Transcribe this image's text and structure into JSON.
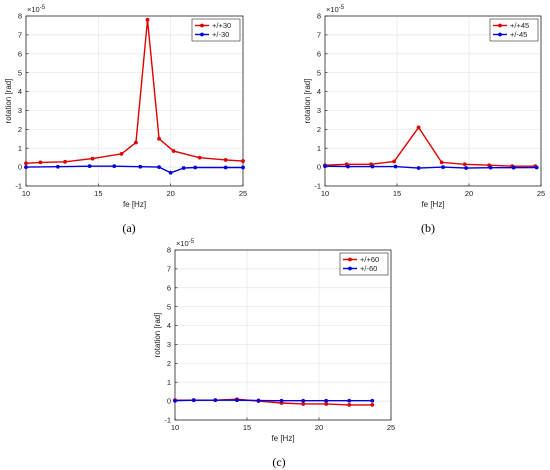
{
  "chart_data": [
    {
      "type": "line",
      "panel_label": "(a)",
      "xlabel": "fe [Hz]",
      "ylabel": "rotation [rad]",
      "y_exponent_base": "×10",
      "y_exponent_power": "-5",
      "xlim": [
        10,
        25
      ],
      "ylim": [
        -1,
        8
      ],
      "xticks": [
        10,
        15,
        20,
        25
      ],
      "yticks": [
        -1,
        0,
        1,
        2,
        3,
        4,
        5,
        6,
        7,
        8
      ],
      "grid": true,
      "legend_position": "top-right",
      "series": [
        {
          "name": "+/+30",
          "color": "#e00000",
          "x": [
            10,
            11,
            12.7,
            14.6,
            16.6,
            17.6,
            18.4,
            19.2,
            20.2,
            22,
            23.8,
            25
          ],
          "y": [
            0.2,
            0.25,
            0.28,
            0.45,
            0.7,
            1.3,
            7.8,
            1.5,
            0.85,
            0.5,
            0.38,
            0.32
          ]
        },
        {
          "name": "+/-30",
          "color": "#0000e0",
          "x": [
            10,
            12.2,
            14.4,
            16.1,
            17.9,
            19.2,
            20,
            20.9,
            21.7,
            23.8,
            25
          ],
          "y": [
            0.0,
            0.02,
            0.05,
            0.05,
            0.02,
            0.0,
            -0.3,
            -0.05,
            -0.02,
            -0.02,
            -0.02
          ]
        }
      ]
    },
    {
      "type": "line",
      "panel_label": "(b)",
      "xlabel": "fe [Hz]",
      "ylabel": "rotation [rad]",
      "y_exponent_base": "×10",
      "y_exponent_power": "-5",
      "xlim": [
        10,
        25
      ],
      "ylim": [
        -1,
        8
      ],
      "xticks": [
        10,
        15,
        20,
        25
      ],
      "yticks": [
        -1,
        0,
        1,
        2,
        3,
        4,
        5,
        6,
        7,
        8
      ],
      "grid": true,
      "legend_position": "top-right",
      "series": [
        {
          "name": "+/+45",
          "color": "#e00000",
          "x": [
            10,
            11.5,
            13.2,
            14.8,
            16.5,
            18.1,
            19.7,
            21.4,
            23.0,
            24.6
          ],
          "y": [
            0.1,
            0.15,
            0.15,
            0.3,
            2.1,
            0.25,
            0.15,
            0.1,
            0.05,
            0.05
          ]
        },
        {
          "name": "+/-45",
          "color": "#0000e0",
          "x": [
            10,
            11.6,
            13.3,
            14.9,
            16.5,
            18.2,
            19.8,
            21.5,
            23.1,
            24.7
          ],
          "y": [
            0.05,
            0.03,
            0.03,
            0.03,
            -0.05,
            0.0,
            -0.05,
            -0.03,
            -0.03,
            -0.02
          ]
        }
      ]
    },
    {
      "type": "line",
      "panel_label": "(c)",
      "xlabel": "fe [Hz]",
      "ylabel": "rotation [rad]",
      "y_exponent_base": "×10",
      "y_exponent_power": "-5",
      "xlim": [
        10,
        25
      ],
      "ylim": [
        -1,
        8
      ],
      "xticks": [
        10,
        15,
        20,
        25
      ],
      "yticks": [
        -1,
        0,
        1,
        2,
        3,
        4,
        5,
        6,
        7,
        8
      ],
      "grid": true,
      "legend_position": "top-right",
      "series": [
        {
          "name": "+/+60",
          "color": "#e00000",
          "x": [
            10,
            11.3,
            12.8,
            14.3,
            15.8,
            17.4,
            18.9,
            20.5,
            22.1,
            23.7
          ],
          "y": [
            0.05,
            0.05,
            0.05,
            0.1,
            0.0,
            -0.1,
            -0.15,
            -0.15,
            -0.2,
            -0.2
          ]
        },
        {
          "name": "+/-60",
          "color": "#0000e0",
          "x": [
            10,
            11.3,
            12.8,
            14.3,
            15.8,
            17.4,
            18.9,
            20.5,
            22.1,
            23.7
          ],
          "y": [
            0.02,
            0.05,
            0.05,
            0.05,
            0.03,
            0.02,
            0.02,
            0.02,
            0.02,
            0.02
          ]
        }
      ]
    }
  ]
}
